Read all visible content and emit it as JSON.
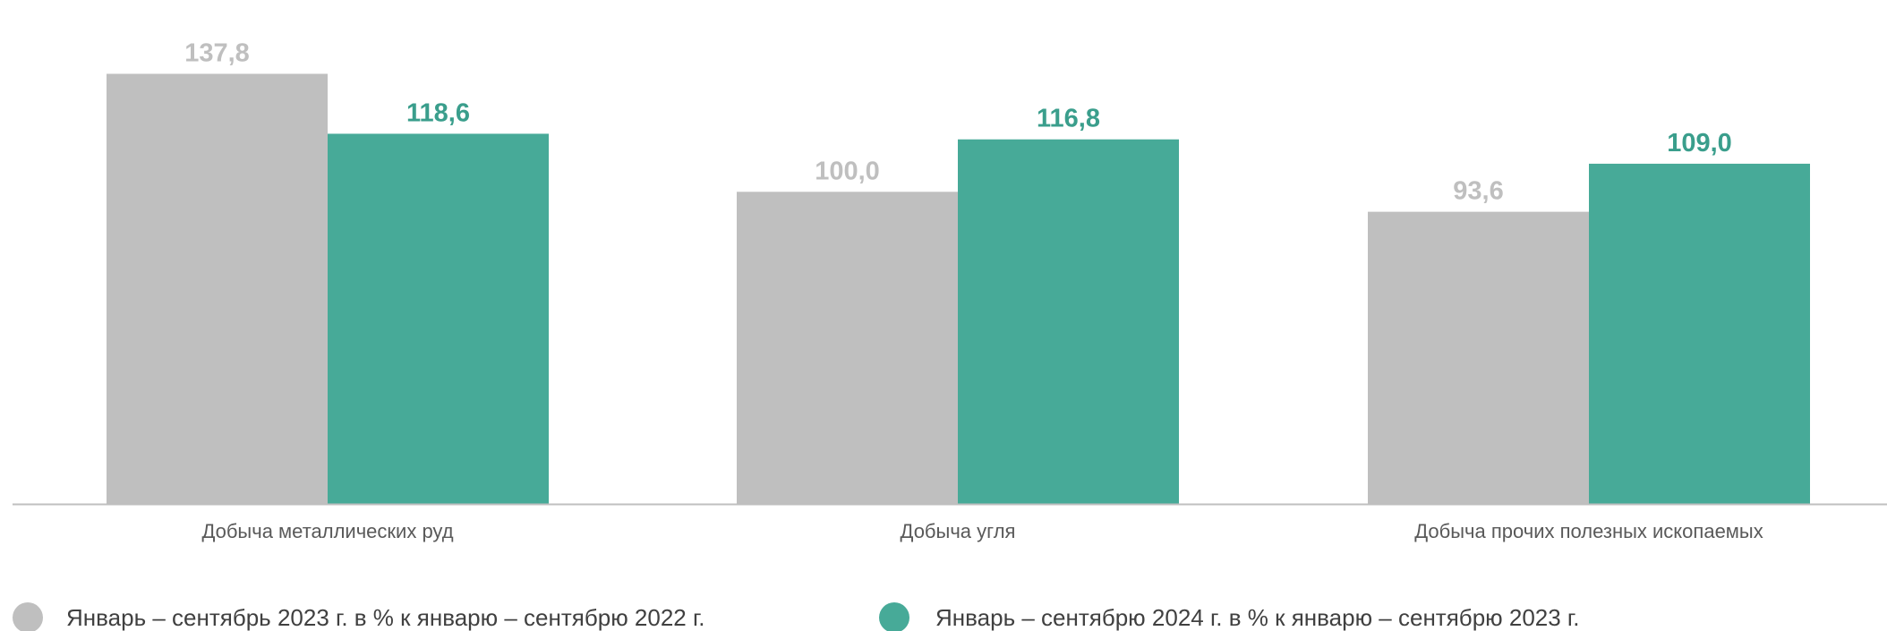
{
  "chart_data": {
    "type": "bar",
    "categories": [
      "Добыча металлических руд",
      "Добыча угля",
      "Добыча прочих полезных ископаемых"
    ],
    "series": [
      {
        "name": "Январь – сентябрь 2023 г. в % к январю – сентябрю 2022 г.",
        "values": [
          137.8,
          100.0,
          93.6
        ],
        "labels": [
          "137,8",
          "100,0",
          "93,6"
        ],
        "color": "#bfbfbf"
      },
      {
        "name": "Январь – сентябрю 2024 г. в % к январю – сентябрю 2023 г.",
        "values": [
          118.6,
          116.8,
          109.0
        ],
        "labels": [
          "118,6",
          "116,8",
          "109,0"
        ],
        "color": "#47aa98"
      }
    ],
    "ylim": [
      0,
      150
    ],
    "grid": false,
    "legend_position": "bottom",
    "value_label_colors": [
      "#bfbfbf",
      "#3a9e8c"
    ],
    "axis_color": "#bfbfbf"
  }
}
